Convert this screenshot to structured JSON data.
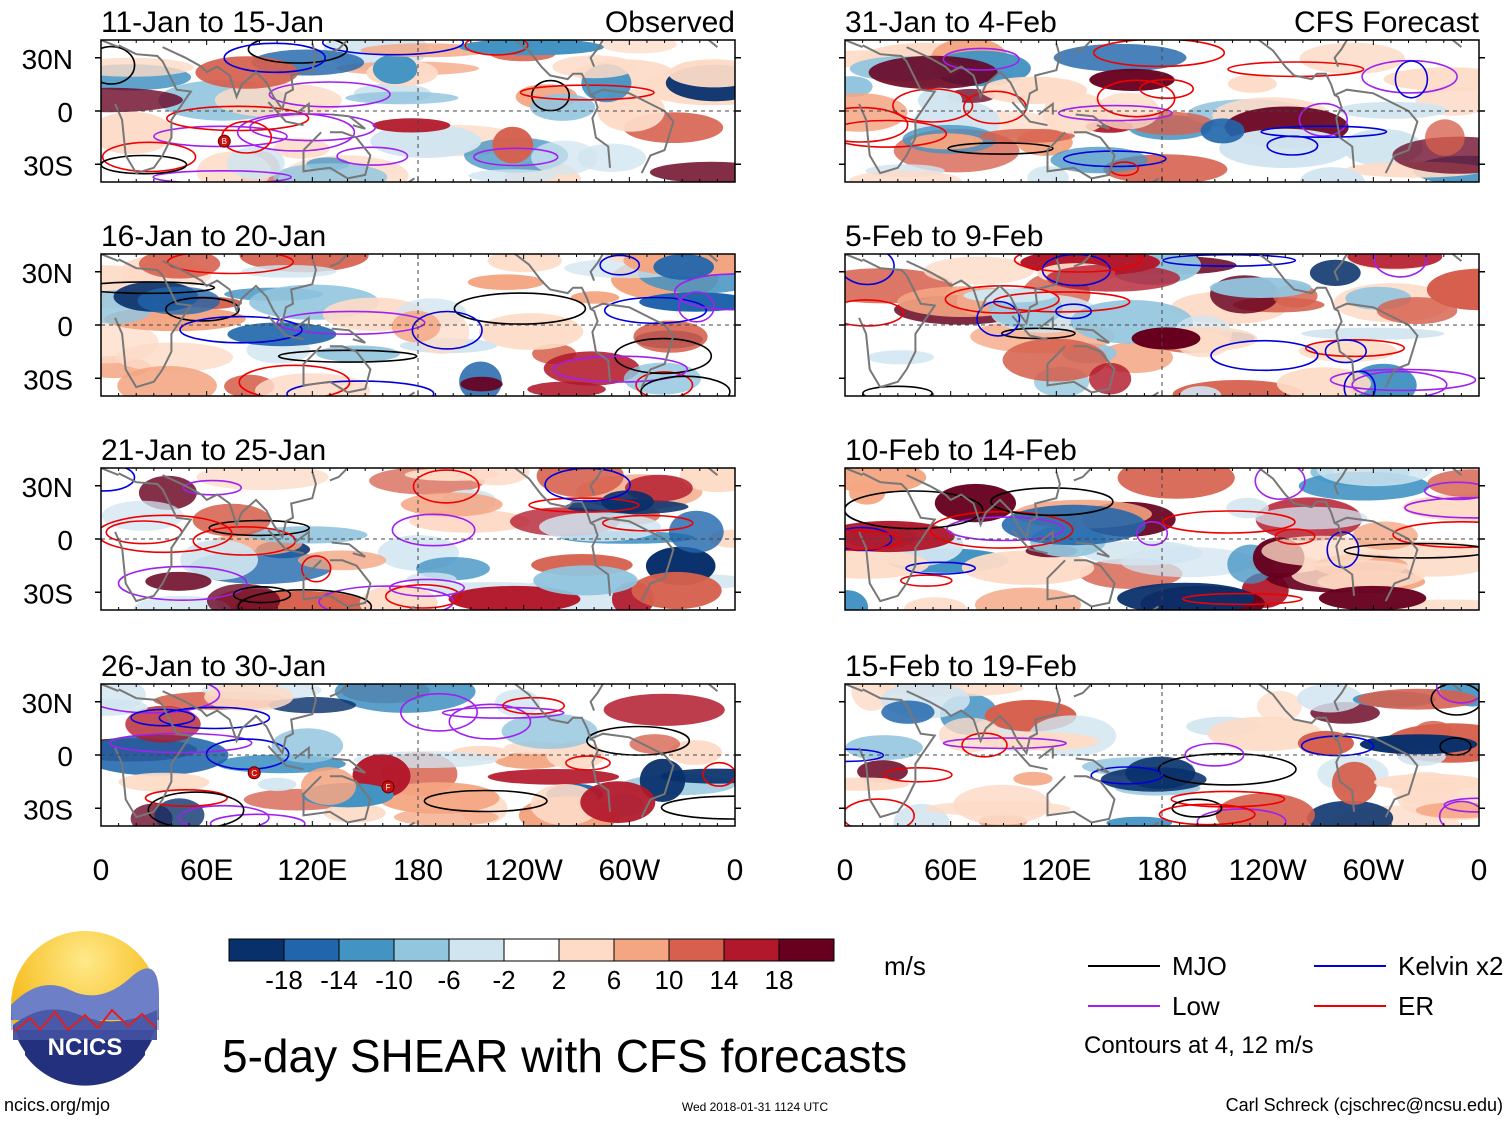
{
  "chart_data": {
    "type": "heatmap",
    "title": "5-day SHEAR with CFS forecasts",
    "units": "m/s",
    "columns": [
      {
        "label": "Observed",
        "periods": [
          "11-Jan to 15-Jan",
          "16-Jan to 20-Jan",
          "21-Jan to 25-Jan",
          "26-Jan to 30-Jan"
        ]
      },
      {
        "label": "CFS Forecast",
        "periods": [
          "31-Jan to 4-Feb",
          "5-Feb to 9-Feb",
          "10-Feb to 14-Feb",
          "15-Feb to 19-Feb"
        ]
      }
    ],
    "latitude_ticks": [
      "30N",
      "0",
      "30S"
    ],
    "longitude_ticks": [
      "0",
      "60E",
      "120E",
      "180",
      "120W",
      "60W",
      "0"
    ],
    "xlim": [
      0,
      360
    ],
    "ylim": [
      -40,
      40
    ],
    "colorbar": {
      "labels": [
        "-18",
        "-14",
        "-10",
        "-6",
        "-2",
        "2",
        "6",
        "10",
        "14",
        "18"
      ],
      "colors": [
        "#08306b",
        "#2166ac",
        "#4393c3",
        "#92c5de",
        "#d1e5f0",
        "#ffffff",
        "#fddbc7",
        "#f4a582",
        "#d6604d",
        "#b2182b",
        "#67001f"
      ]
    },
    "legend": [
      {
        "label": "MJO",
        "color": "#000000"
      },
      {
        "label": "Kelvin x2",
        "color": "#0000dd"
      },
      {
        "label": "Low",
        "color": "#a020f0"
      },
      {
        "label": "ER",
        "color": "#ee0000"
      }
    ],
    "contour_note": "Contours at 4, 12 m/s",
    "storm_markers": [
      {
        "panel": 0,
        "label": "B",
        "lon": 70,
        "lat": -17
      },
      {
        "panel": 3,
        "label": "C",
        "lon": 87,
        "lat": -10
      },
      {
        "panel": 3,
        "label": "F",
        "lon": 163,
        "lat": -18
      }
    ]
  },
  "footer": {
    "logo_text": "NCICS",
    "website": "ncics.org/mjo",
    "timestamp": "Wed 2018-01-31 1124 UTC",
    "credit": "Carl Schreck (cjschrec@ncsu.edu)"
  }
}
